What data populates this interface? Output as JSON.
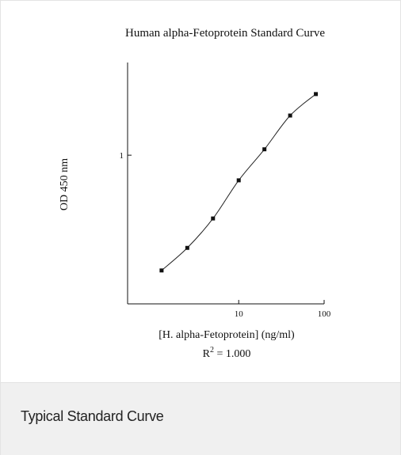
{
  "chart_data": {
    "type": "line",
    "title": "Human alpha-Fetoprotein Standard Curve",
    "xlabel": "[H. alpha-Fetoprotein] (ng/ml)",
    "ylabel": "OD 450 nm",
    "x_scale": "log",
    "y_scale": "log",
    "xlim": [
      0.5,
      100
    ],
    "ylim": [
      0.23,
      2.5
    ],
    "x_ticks": [
      {
        "value": 10,
        "label": "10"
      },
      {
        "value": 100,
        "label": "100"
      }
    ],
    "y_ticks": [
      {
        "value": 1,
        "label": "1"
      }
    ],
    "annotation": {
      "prefix": "R",
      "superscript": "2",
      "suffix": " = 1.000"
    },
    "grid": false,
    "series": [
      {
        "x": [
          1.25,
          2.5,
          5,
          10,
          20,
          40,
          80
        ],
        "y": [
          0.32,
          0.4,
          0.535,
          0.78,
          1.06,
          1.48,
          1.83
        ]
      }
    ]
  },
  "caption": {
    "text": "Typical Standard Curve"
  }
}
